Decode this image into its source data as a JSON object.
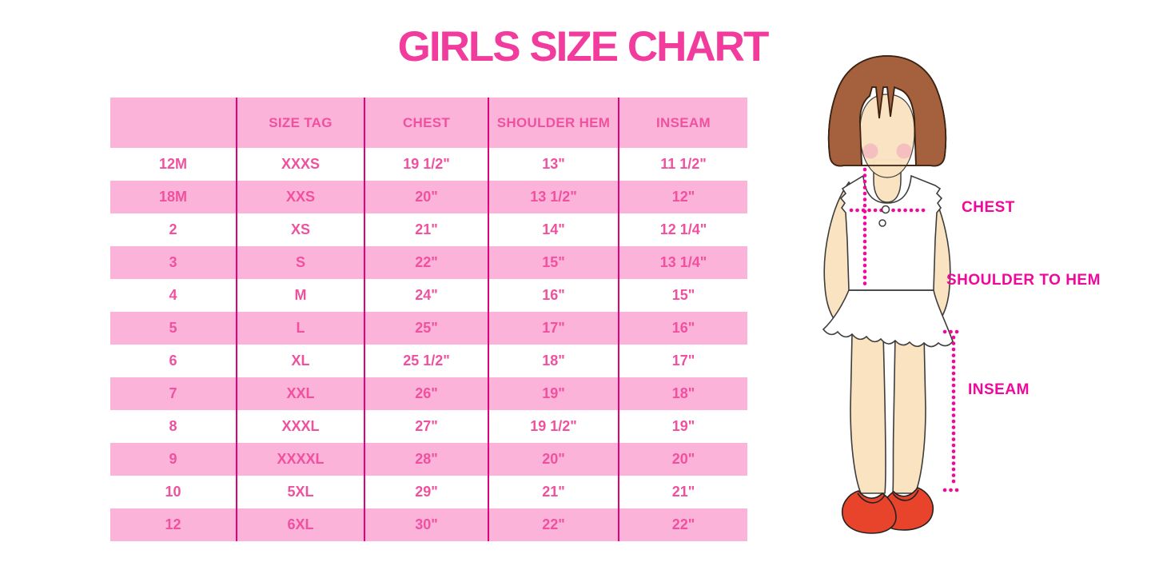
{
  "title": "GIRLS SIZE CHART",
  "chart_data": {
    "type": "table",
    "title": "GIRLS SIZE CHART",
    "columns": [
      "",
      "SIZE TAG",
      "CHEST",
      "SHOULDER HEM",
      "INSEAM"
    ],
    "rows": [
      [
        "12M",
        "XXXS",
        "19 1/2\"",
        "13\"",
        "11 1/2\""
      ],
      [
        "18M",
        "XXS",
        "20\"",
        "13 1/2\"",
        "12\""
      ],
      [
        "2",
        "XS",
        "21\"",
        "14\"",
        "12 1/4\""
      ],
      [
        "3",
        "S",
        "22\"",
        "15\"",
        "13 1/4\""
      ],
      [
        "4",
        "M",
        "24\"",
        "16\"",
        "15\""
      ],
      [
        "5",
        "L",
        "25\"",
        "17\"",
        "16\""
      ],
      [
        "6",
        "XL",
        "25 1/2\"",
        "18\"",
        "17\""
      ],
      [
        "7",
        "XXL",
        "26\"",
        "19\"",
        "18\""
      ],
      [
        "8",
        "XXXL",
        "27\"",
        "19 1/2\"",
        "19\""
      ],
      [
        "9",
        "XXXXL",
        "28\"",
        "20\"",
        "20\""
      ],
      [
        "10",
        "5XL",
        "29\"",
        "21\"",
        "21\""
      ],
      [
        "12",
        "6XL",
        "30\"",
        "22\"",
        "22\""
      ]
    ],
    "layout_hints": {
      "stripe_pattern": "header pink, then alternating white/pink data rows",
      "grid": "vertical magenta column dividers only"
    }
  },
  "diagram": {
    "labels": {
      "chest": "CHEST",
      "shoulder_to_hem": "SHOULDER TO HEM",
      "inseam": "INSEAM"
    }
  },
  "colors": {
    "title_pink": "#F23C9D",
    "row_pink": "#FCB3DA",
    "divider_magenta": "#E0027C",
    "table_text_pink": "#F0519F",
    "label_magenta": "#F2079B",
    "hair_brown": "#A5613D",
    "skin": "#FAE3C1",
    "shoe_red": "#E8432B"
  }
}
